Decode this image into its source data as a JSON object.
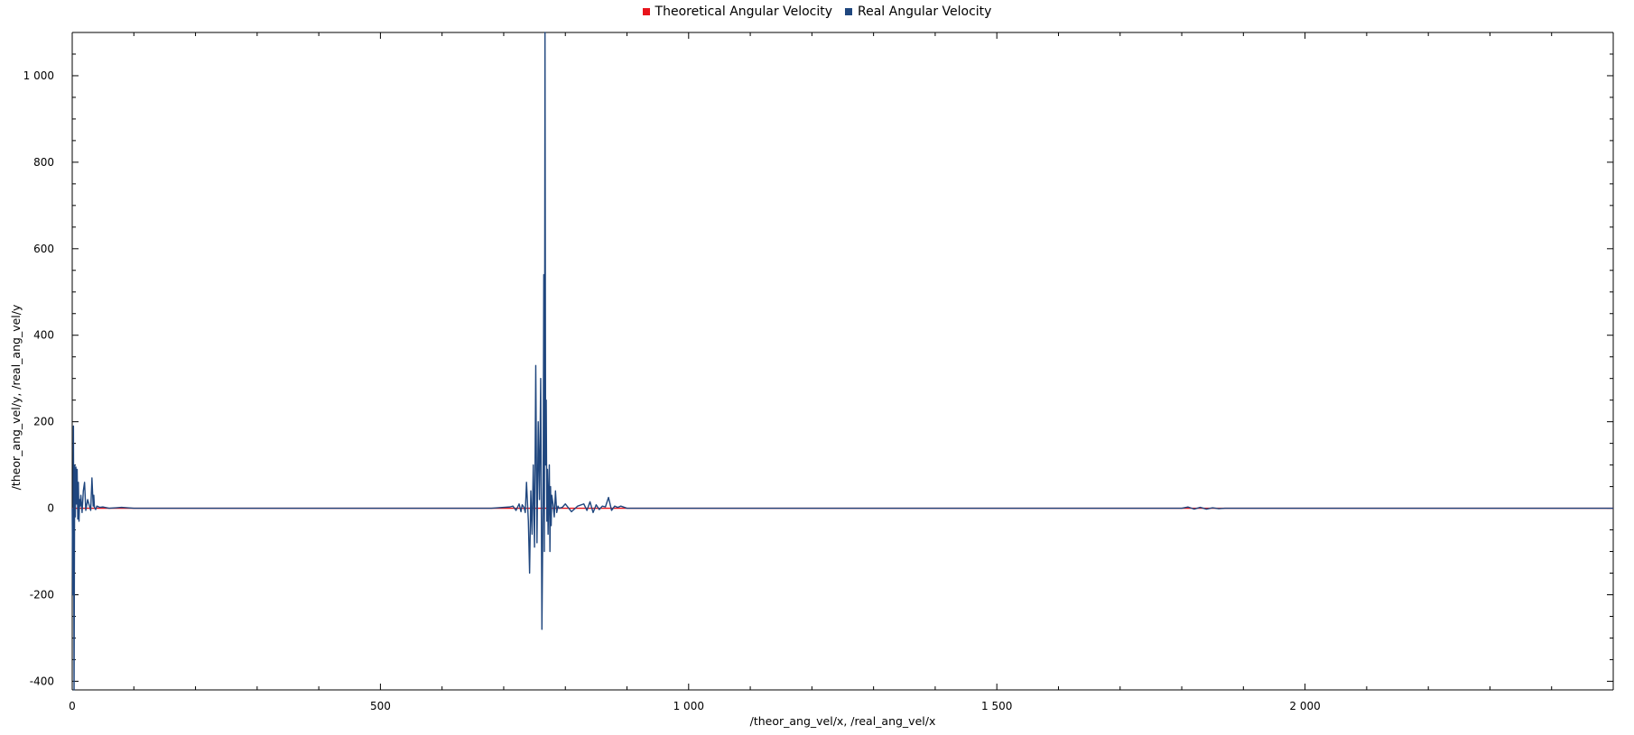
{
  "chart_data": {
    "type": "line",
    "title": "",
    "xlabel": "/theor_ang_vel/x, /real_ang_vel/x",
    "ylabel": "/theor_ang_vel/y, /real_ang_vel/y",
    "xlim": [
      0,
      2500
    ],
    "ylim": [
      -420,
      1100
    ],
    "x_ticks": [
      0,
      500,
      1000,
      1500,
      2000
    ],
    "x_tick_labels": [
      "0",
      "500",
      "1 000",
      "1 500",
      "2 000"
    ],
    "y_ticks": [
      -400,
      -200,
      0,
      200,
      400,
      600,
      800,
      1000
    ],
    "y_tick_labels": [
      "-400",
      "-200",
      "0",
      "200",
      "400",
      "600",
      "800",
      "1 000"
    ],
    "grid": false,
    "legend_position": "top-center",
    "series": [
      {
        "name": "Theoretical Angular Velocity",
        "color": "#e8141c",
        "x": [
          0,
          2500
        ],
        "y": [
          0,
          0
        ]
      },
      {
        "name": "Real Angular Velocity",
        "color": "#1f467e",
        "x": [
          0,
          1,
          2,
          3,
          4,
          5,
          6,
          7,
          8,
          9,
          10,
          11,
          12,
          13,
          14,
          16,
          18,
          20,
          22,
          25,
          28,
          30,
          32,
          34,
          35,
          36,
          38,
          40,
          45,
          50,
          60,
          80,
          100,
          300,
          680,
          700,
          710,
          715,
          720,
          725,
          728,
          730,
          733,
          735,
          737,
          740,
          742,
          744,
          746,
          748,
          750,
          752,
          754,
          756,
          758,
          760,
          762,
          764,
          765,
          766,
          767,
          768,
          769,
          770,
          771,
          772,
          773,
          774,
          775,
          776,
          777,
          778,
          780,
          782,
          784,
          786,
          788,
          790,
          795,
          800,
          810,
          820,
          830,
          835,
          840,
          845,
          850,
          855,
          860,
          865,
          870,
          875,
          880,
          885,
          890,
          900,
          1000,
          1500,
          1800,
          1810,
          1820,
          1830,
          1840,
          1850,
          1860,
          1870,
          2000,
          2500
        ],
        "y": [
          0,
          -200,
          190,
          -420,
          100,
          -20,
          95,
          10,
          90,
          -25,
          60,
          -30,
          20,
          5,
          30,
          -10,
          40,
          60,
          -5,
          20,
          5,
          -5,
          70,
          5,
          30,
          2,
          -3,
          5,
          2,
          3,
          0,
          2,
          0,
          0,
          0,
          2,
          3,
          5,
          -5,
          10,
          -8,
          8,
          2,
          -10,
          60,
          -30,
          -150,
          40,
          -60,
          100,
          -90,
          330,
          -80,
          200,
          20,
          300,
          -280,
          50,
          540,
          -100,
          1100,
          100,
          250,
          -30,
          90,
          -60,
          30,
          100,
          -100,
          50,
          -40,
          30,
          10,
          -20,
          40,
          -10,
          5,
          0,
          2,
          10,
          -8,
          5,
          10,
          -5,
          15,
          -10,
          8,
          -3,
          5,
          3,
          25,
          -5,
          5,
          2,
          5,
          0,
          0,
          0,
          0,
          3,
          -2,
          2,
          -2,
          1,
          -1,
          0,
          0,
          0
        ]
      }
    ]
  }
}
